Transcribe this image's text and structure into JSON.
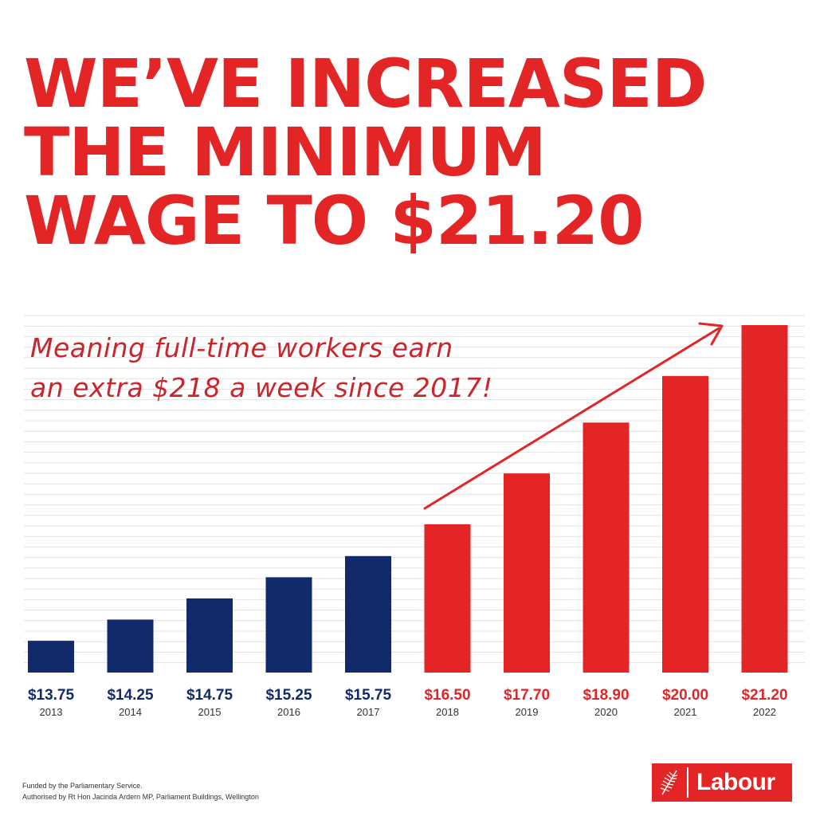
{
  "headline": {
    "lines": [
      "WE’VE INCREASED",
      "THE MINIMUM",
      "WAGE TO $21.20"
    ]
  },
  "subtitle": {
    "lines": [
      "Meaning full-time workers earn",
      "an extra $218 a week since 2017!"
    ]
  },
  "chart_data": {
    "type": "bar",
    "categories": [
      "2013",
      "2014",
      "2015",
      "2016",
      "2017",
      "2018",
      "2019",
      "2020",
      "2021",
      "2022"
    ],
    "values": [
      13.75,
      14.25,
      14.75,
      15.25,
      15.75,
      16.5,
      17.7,
      18.9,
      20.0,
      21.2
    ],
    "value_labels": [
      "$13.75",
      "$14.25",
      "$14.75",
      "$15.25",
      "$15.75",
      "$16.50",
      "$17.70",
      "$18.90",
      "$20.00",
      "$21.20"
    ],
    "title": "WE’VE INCREASED THE MINIMUM WAGE TO $21.20",
    "xlabel": "",
    "ylabel": "",
    "ylim": [
      13,
      21.2
    ],
    "grid": true,
    "highlight_from_index": 5,
    "annotation": "trend-arrow from 2018 to 2022"
  },
  "colors": {
    "red": "#e32526",
    "navy": "#112a6b",
    "grid": "#e2e2e2"
  },
  "footer": {
    "line1": "Funded by the Parliamentary Service.",
    "line2": "Authorised by Rt Hon Jacinda Ardern MP, Parliament Buildings, Wellington"
  },
  "logo": {
    "text": "Labour",
    "icon": "fern-icon"
  }
}
